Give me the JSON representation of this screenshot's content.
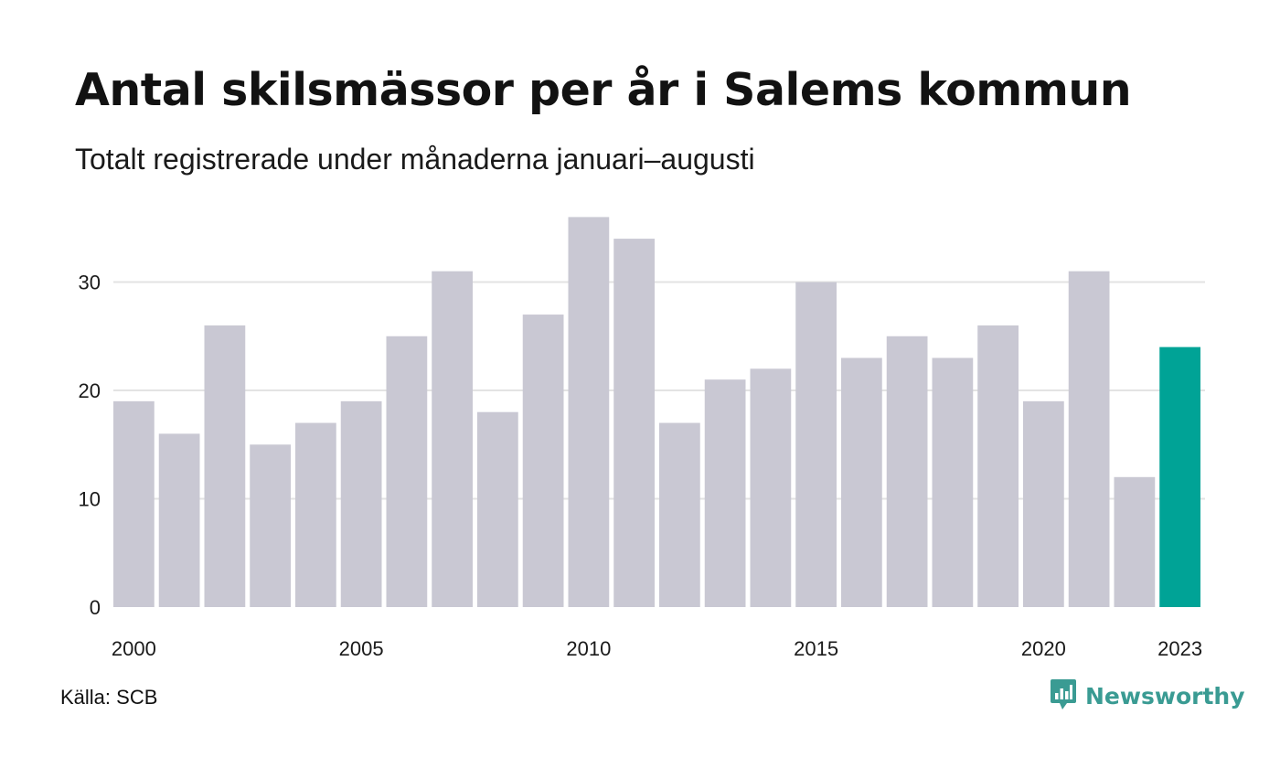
{
  "title": "Antal skilsmässor per år i Salems kommun",
  "subtitle": "Totalt registrerade under månaderna januari–augusti",
  "source": "Källa: SCB",
  "brand": "Newsworthy",
  "colors": {
    "bar": "#c9c8d3",
    "highlight": "#00a396",
    "grid": "#e3e3e3",
    "brand": "#3a9b93"
  },
  "chart_data": {
    "type": "bar",
    "title": "Antal skilsmässor per år i Salems kommun",
    "subtitle": "Totalt registrerade under månaderna januari–augusti",
    "xlabel": "",
    "ylabel": "",
    "categories": [
      2000,
      2001,
      2002,
      2003,
      2004,
      2005,
      2006,
      2007,
      2008,
      2009,
      2010,
      2011,
      2012,
      2013,
      2014,
      2015,
      2016,
      2017,
      2018,
      2019,
      2020,
      2021,
      2022,
      2023
    ],
    "values": [
      19,
      16,
      26,
      15,
      17,
      19,
      25,
      31,
      18,
      27,
      36,
      34,
      17,
      21,
      22,
      30,
      23,
      25,
      23,
      26,
      19,
      31,
      12,
      24
    ],
    "highlight_category": 2023,
    "x_tick_labels": [
      "2000",
      "2005",
      "2010",
      "2015",
      "2020",
      "2023"
    ],
    "y_ticks": [
      0,
      10,
      20,
      30
    ],
    "ylim": [
      0,
      36
    ],
    "grid": true,
    "legend": "none"
  }
}
